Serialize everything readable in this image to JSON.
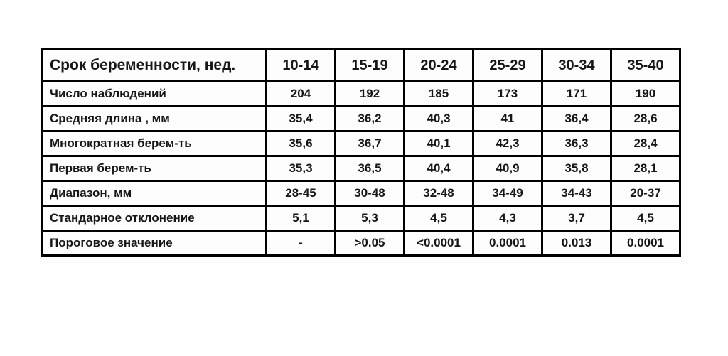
{
  "table": {
    "header": {
      "label": "Срок беременности, нед.",
      "columns": [
        "10-14",
        "15-19",
        "20-24",
        "25-29",
        "30-34",
        "35-40"
      ]
    },
    "rows": [
      {
        "label": "Число наблюдений",
        "values": [
          "204",
          "192",
          "185",
          "173",
          "171",
          "190"
        ]
      },
      {
        "label": "Средняя длина , мм",
        "values": [
          "35,4",
          "36,2",
          "40,3",
          "41",
          "36,4",
          "28,6"
        ]
      },
      {
        "label": "Многократная берем-ть",
        "values": [
          "35,6",
          "36,7",
          "40,1",
          "42,3",
          "36,3",
          "28,4"
        ]
      },
      {
        "label": "Первая берем-ть",
        "values": [
          "35,3",
          "36,5",
          "40,4",
          "40,9",
          "35,8",
          "28,1"
        ]
      },
      {
        "label": "Диапазон, мм",
        "values": [
          "28-45",
          "30-48",
          "32-48",
          "34-49",
          "34-43",
          "20-37"
        ]
      },
      {
        "label": "Стандарное отклонение",
        "values": [
          "5,1",
          "5,3",
          "4,5",
          "4,3",
          "3,7",
          "4,5"
        ]
      },
      {
        "label": "Пороговое значение",
        "values": [
          "-",
          ">0.05",
          "<0.0001",
          "0.0001",
          "0.013",
          "0.0001"
        ]
      }
    ]
  },
  "chart_data": {
    "type": "table",
    "title": "Срок беременности, нед.",
    "columns": [
      "10-14",
      "15-19",
      "20-24",
      "25-29",
      "30-34",
      "35-40"
    ],
    "row_labels": [
      "Число наблюдений",
      "Средняя длина , мм",
      "Многократная берем-ть",
      "Первая берем-ть",
      "Диапазон, мм",
      "Стандарное отклонение",
      "Пороговое значение"
    ],
    "cells": [
      [
        "204",
        "192",
        "185",
        "173",
        "171",
        "190"
      ],
      [
        "35,4",
        "36,2",
        "40,3",
        "41",
        "36,4",
        "28,6"
      ],
      [
        "35,6",
        "36,7",
        "40,1",
        "42,3",
        "36,3",
        "28,4"
      ],
      [
        "35,3",
        "36,5",
        "40,4",
        "40,9",
        "35,8",
        "28,1"
      ],
      [
        "28-45",
        "30-48",
        "32-48",
        "34-49",
        "34-43",
        "20-37"
      ],
      [
        "5,1",
        "5,3",
        "4,5",
        "4,3",
        "3,7",
        "4,5"
      ],
      [
        "-",
        ">0.05",
        "<0.0001",
        "0.0001",
        "0.013",
        "0.0001"
      ]
    ]
  },
  "colors": {
    "border": "#000000",
    "text": "#161616",
    "background": "#fefefe"
  }
}
